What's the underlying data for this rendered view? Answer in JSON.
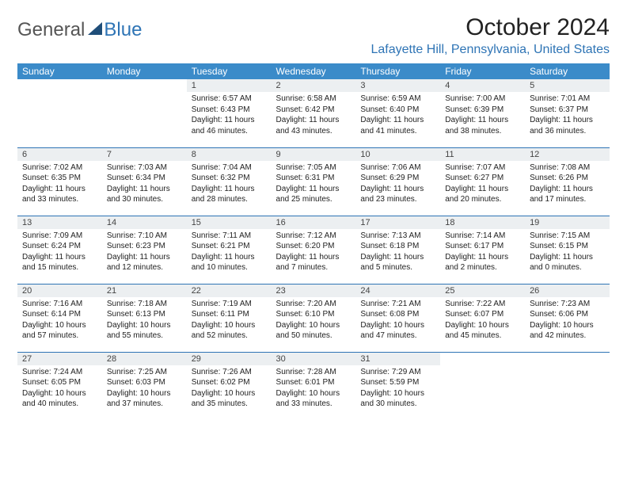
{
  "logo": {
    "part1": "General",
    "part2": "Blue"
  },
  "title": "October 2024",
  "subtitle": "Lafayette Hill, Pennsylvania, United States",
  "colors": {
    "header_bg": "#3b8bc9",
    "accent": "#2e74b5",
    "daynum_bg": "#eceff1",
    "text": "#222222",
    "logo_dark": "#1f4e79"
  },
  "weekdays": [
    "Sunday",
    "Monday",
    "Tuesday",
    "Wednesday",
    "Thursday",
    "Friday",
    "Saturday"
  ],
  "weeks": [
    [
      {
        "day": "",
        "sunrise": "",
        "sunset": "",
        "daylight": ""
      },
      {
        "day": "",
        "sunrise": "",
        "sunset": "",
        "daylight": ""
      },
      {
        "day": "1",
        "sunrise": "Sunrise: 6:57 AM",
        "sunset": "Sunset: 6:43 PM",
        "daylight": "Daylight: 11 hours and 46 minutes."
      },
      {
        "day": "2",
        "sunrise": "Sunrise: 6:58 AM",
        "sunset": "Sunset: 6:42 PM",
        "daylight": "Daylight: 11 hours and 43 minutes."
      },
      {
        "day": "3",
        "sunrise": "Sunrise: 6:59 AM",
        "sunset": "Sunset: 6:40 PM",
        "daylight": "Daylight: 11 hours and 41 minutes."
      },
      {
        "day": "4",
        "sunrise": "Sunrise: 7:00 AM",
        "sunset": "Sunset: 6:39 PM",
        "daylight": "Daylight: 11 hours and 38 minutes."
      },
      {
        "day": "5",
        "sunrise": "Sunrise: 7:01 AM",
        "sunset": "Sunset: 6:37 PM",
        "daylight": "Daylight: 11 hours and 36 minutes."
      }
    ],
    [
      {
        "day": "6",
        "sunrise": "Sunrise: 7:02 AM",
        "sunset": "Sunset: 6:35 PM",
        "daylight": "Daylight: 11 hours and 33 minutes."
      },
      {
        "day": "7",
        "sunrise": "Sunrise: 7:03 AM",
        "sunset": "Sunset: 6:34 PM",
        "daylight": "Daylight: 11 hours and 30 minutes."
      },
      {
        "day": "8",
        "sunrise": "Sunrise: 7:04 AM",
        "sunset": "Sunset: 6:32 PM",
        "daylight": "Daylight: 11 hours and 28 minutes."
      },
      {
        "day": "9",
        "sunrise": "Sunrise: 7:05 AM",
        "sunset": "Sunset: 6:31 PM",
        "daylight": "Daylight: 11 hours and 25 minutes."
      },
      {
        "day": "10",
        "sunrise": "Sunrise: 7:06 AM",
        "sunset": "Sunset: 6:29 PM",
        "daylight": "Daylight: 11 hours and 23 minutes."
      },
      {
        "day": "11",
        "sunrise": "Sunrise: 7:07 AM",
        "sunset": "Sunset: 6:27 PM",
        "daylight": "Daylight: 11 hours and 20 minutes."
      },
      {
        "day": "12",
        "sunrise": "Sunrise: 7:08 AM",
        "sunset": "Sunset: 6:26 PM",
        "daylight": "Daylight: 11 hours and 17 minutes."
      }
    ],
    [
      {
        "day": "13",
        "sunrise": "Sunrise: 7:09 AM",
        "sunset": "Sunset: 6:24 PM",
        "daylight": "Daylight: 11 hours and 15 minutes."
      },
      {
        "day": "14",
        "sunrise": "Sunrise: 7:10 AM",
        "sunset": "Sunset: 6:23 PM",
        "daylight": "Daylight: 11 hours and 12 minutes."
      },
      {
        "day": "15",
        "sunrise": "Sunrise: 7:11 AM",
        "sunset": "Sunset: 6:21 PM",
        "daylight": "Daylight: 11 hours and 10 minutes."
      },
      {
        "day": "16",
        "sunrise": "Sunrise: 7:12 AM",
        "sunset": "Sunset: 6:20 PM",
        "daylight": "Daylight: 11 hours and 7 minutes."
      },
      {
        "day": "17",
        "sunrise": "Sunrise: 7:13 AM",
        "sunset": "Sunset: 6:18 PM",
        "daylight": "Daylight: 11 hours and 5 minutes."
      },
      {
        "day": "18",
        "sunrise": "Sunrise: 7:14 AM",
        "sunset": "Sunset: 6:17 PM",
        "daylight": "Daylight: 11 hours and 2 minutes."
      },
      {
        "day": "19",
        "sunrise": "Sunrise: 7:15 AM",
        "sunset": "Sunset: 6:15 PM",
        "daylight": "Daylight: 11 hours and 0 minutes."
      }
    ],
    [
      {
        "day": "20",
        "sunrise": "Sunrise: 7:16 AM",
        "sunset": "Sunset: 6:14 PM",
        "daylight": "Daylight: 10 hours and 57 minutes."
      },
      {
        "day": "21",
        "sunrise": "Sunrise: 7:18 AM",
        "sunset": "Sunset: 6:13 PM",
        "daylight": "Daylight: 10 hours and 55 minutes."
      },
      {
        "day": "22",
        "sunrise": "Sunrise: 7:19 AM",
        "sunset": "Sunset: 6:11 PM",
        "daylight": "Daylight: 10 hours and 52 minutes."
      },
      {
        "day": "23",
        "sunrise": "Sunrise: 7:20 AM",
        "sunset": "Sunset: 6:10 PM",
        "daylight": "Daylight: 10 hours and 50 minutes."
      },
      {
        "day": "24",
        "sunrise": "Sunrise: 7:21 AM",
        "sunset": "Sunset: 6:08 PM",
        "daylight": "Daylight: 10 hours and 47 minutes."
      },
      {
        "day": "25",
        "sunrise": "Sunrise: 7:22 AM",
        "sunset": "Sunset: 6:07 PM",
        "daylight": "Daylight: 10 hours and 45 minutes."
      },
      {
        "day": "26",
        "sunrise": "Sunrise: 7:23 AM",
        "sunset": "Sunset: 6:06 PM",
        "daylight": "Daylight: 10 hours and 42 minutes."
      }
    ],
    [
      {
        "day": "27",
        "sunrise": "Sunrise: 7:24 AM",
        "sunset": "Sunset: 6:05 PM",
        "daylight": "Daylight: 10 hours and 40 minutes."
      },
      {
        "day": "28",
        "sunrise": "Sunrise: 7:25 AM",
        "sunset": "Sunset: 6:03 PM",
        "daylight": "Daylight: 10 hours and 37 minutes."
      },
      {
        "day": "29",
        "sunrise": "Sunrise: 7:26 AM",
        "sunset": "Sunset: 6:02 PM",
        "daylight": "Daylight: 10 hours and 35 minutes."
      },
      {
        "day": "30",
        "sunrise": "Sunrise: 7:28 AM",
        "sunset": "Sunset: 6:01 PM",
        "daylight": "Daylight: 10 hours and 33 minutes."
      },
      {
        "day": "31",
        "sunrise": "Sunrise: 7:29 AM",
        "sunset": "Sunset: 5:59 PM",
        "daylight": "Daylight: 10 hours and 30 minutes."
      },
      {
        "day": "",
        "sunrise": "",
        "sunset": "",
        "daylight": ""
      },
      {
        "day": "",
        "sunrise": "",
        "sunset": "",
        "daylight": ""
      }
    ]
  ]
}
